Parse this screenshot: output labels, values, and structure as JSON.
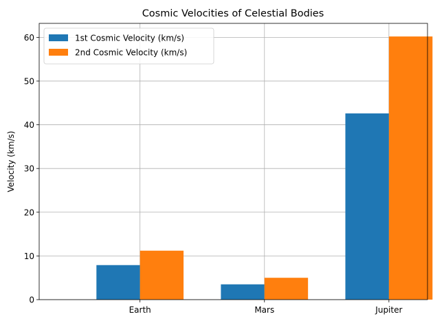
{
  "chart_data": {
    "type": "bar",
    "title": "Cosmic Velocities of Celestial Bodies",
    "xlabel": "",
    "ylabel": "Velocity (km/s)",
    "categories": [
      "Earth",
      "Mars",
      "Jupiter"
    ],
    "series": [
      {
        "name": "1st Cosmic Velocity (km/s)",
        "values": [
          7.9,
          3.5,
          42.6
        ],
        "color": "#1f77b4"
      },
      {
        "name": "2nd Cosmic Velocity (km/s)",
        "values": [
          11.2,
          5.0,
          60.2
        ],
        "color": "#ff7f0e"
      }
    ],
    "ylim": [
      0,
      63.2
    ],
    "yticks": [
      0,
      10,
      20,
      30,
      40,
      50,
      60
    ],
    "grid": true,
    "legend": "top-left"
  }
}
